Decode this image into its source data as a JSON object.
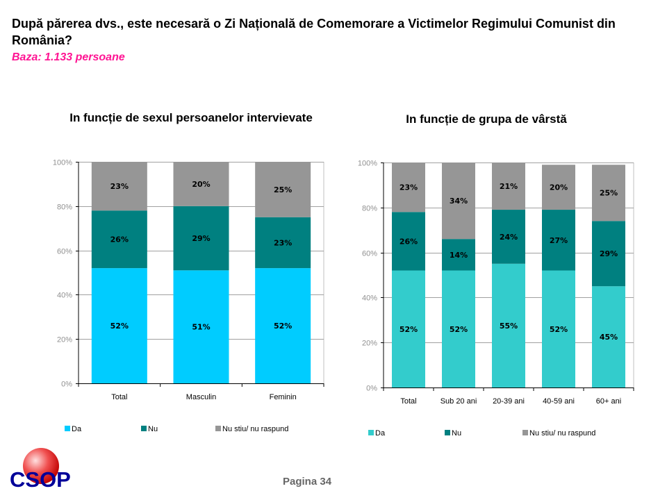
{
  "header": {
    "title": "După părerea dvs., este necesară o Zi Națională de Comemorare a Victimelor Regimului Comunist din România?",
    "subtitle": "Baza: 1.133 persoane"
  },
  "footer": {
    "page_label": "Pagina 34",
    "logo_text": "CSOP"
  },
  "colors": {
    "da_left": "#00ccff",
    "da_right": "#33cccc",
    "nu": "#008080",
    "ns": "#969696",
    "subtitle": "#ff1493"
  },
  "chart_data": [
    {
      "type": "bar",
      "stacked": true,
      "title": "In funcție de sexul persoanelor intervievate",
      "categories": [
        "Total",
        "Masculin",
        "Feminin"
      ],
      "series": [
        {
          "name": "Da",
          "values": [
            52,
            51,
            52
          ],
          "labels": [
            "52%",
            "51%",
            "52%"
          ]
        },
        {
          "name": "Nu",
          "values": [
            26,
            29,
            23
          ],
          "labels": [
            "26%",
            "29%",
            "23%"
          ]
        },
        {
          "name": "Nu stiu/ nu raspund",
          "values": [
            23,
            20,
            25
          ],
          "labels": [
            "23%",
            "20%",
            "25%"
          ]
        }
      ],
      "yticks": [
        "0%",
        "20%",
        "40%",
        "60%",
        "80%",
        "100%"
      ],
      "ylim": [
        0,
        100
      ],
      "xlabel": "",
      "ylabel": "",
      "grid": true,
      "legend": "bottom"
    },
    {
      "type": "bar",
      "stacked": true,
      "title": "In funcție de grupa de vârstă",
      "categories": [
        "Total",
        "Sub 20 ani",
        "20-39 ani",
        "40-59 ani",
        "60+ ani"
      ],
      "series": [
        {
          "name": "Da",
          "values": [
            52,
            52,
            55,
            52,
            45
          ],
          "labels": [
            "52%",
            "52%",
            "55%",
            "52%",
            "45%"
          ]
        },
        {
          "name": "Nu",
          "values": [
            26,
            14,
            24,
            27,
            29
          ],
          "labels": [
            "26%",
            "14%",
            "24%",
            "27%",
            "29%"
          ]
        },
        {
          "name": "Nu stiu/ nu raspund",
          "values": [
            23,
            34,
            21,
            20,
            25
          ],
          "labels": [
            "23%",
            "34%",
            "21%",
            "20%",
            "25%"
          ]
        }
      ],
      "yticks": [
        "0%",
        "20%",
        "40%",
        "60%",
        "80%",
        "100%"
      ],
      "ylim": [
        0,
        100
      ],
      "xlabel": "",
      "ylabel": "",
      "grid": true,
      "legend": "bottom"
    }
  ]
}
